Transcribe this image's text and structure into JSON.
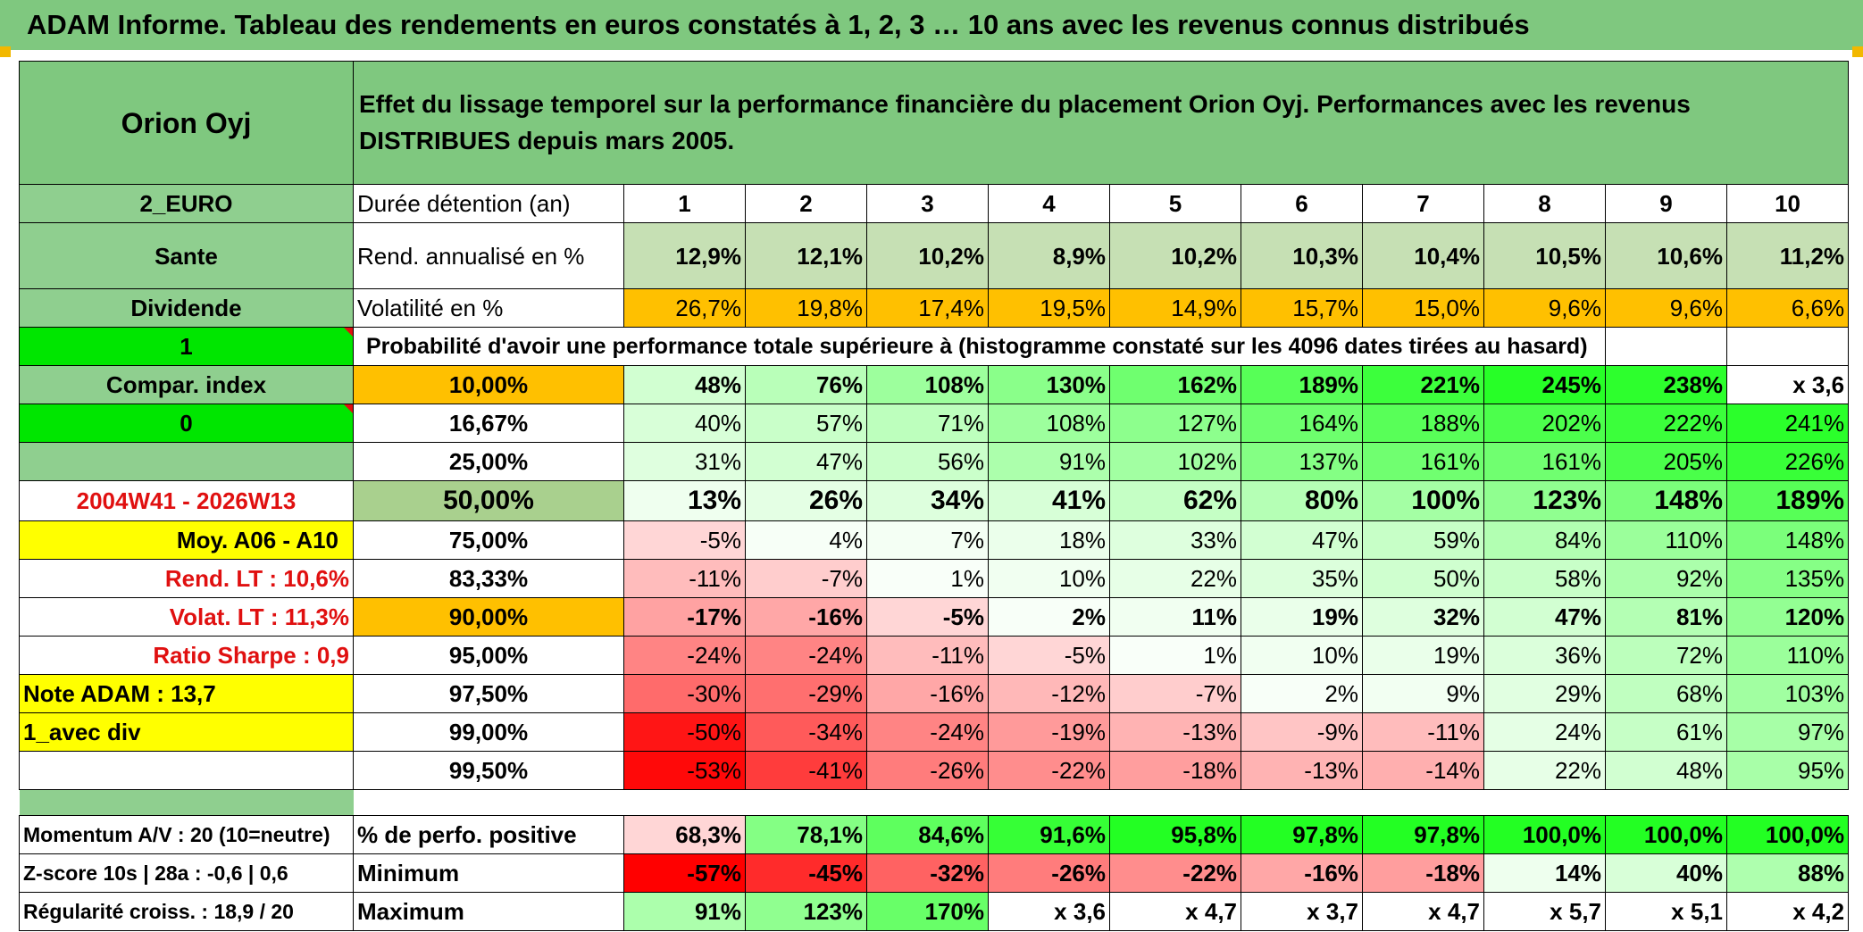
{
  "title": "ADAM Informe. Tableau des rendements en euros constatés à 1, 2, 3 … 10 ans avec les revenus connus distribués",
  "entity_name": "Orion Oyj",
  "description": "Effet du lissage temporel sur la performance financière du placement Orion Oyj. Performances avec les revenus DISTRIBUES depuis mars 2005.",
  "left_labels": {
    "currency": "2_EURO",
    "sector": "Sante",
    "dividend": "Dividende",
    "flag_1": "1",
    "compar_index": "Compar. index",
    "flag_0": "0",
    "blank": "",
    "period": "2004W41 - 2026W13",
    "avg": "Moy. A06 - A10",
    "rend_lt": "Rend. LT :    10,6%",
    "volat_lt": "Volat. LT :    11,3%",
    "sharpe": "Ratio Sharpe :    0,9",
    "note": "Note ADAM : 13,7",
    "variant": "1_avec div",
    "momentum": "Momentum A/V : 20 (10=neutre)",
    "zscore": "Z-score 10s | 28a : -0,6 | 0,6",
    "regularite": "Régularité croiss. : 18,9 / 20"
  },
  "row_labels": {
    "duration": "Durée détention (an)",
    "rend": "Rend. annualisé en %",
    "vol": "Volatilité en %",
    "prob_header": "Probabilité d'avoir une performance totale supérieure à (histogramme constaté sur les 4096 dates tirées au hasard)",
    "positive": "% de perfo. positive",
    "minimum": "Minimum",
    "maximum": "Maximum"
  },
  "years": [
    "1",
    "2",
    "3",
    "4",
    "5",
    "6",
    "7",
    "8",
    "9",
    "10"
  ],
  "rend": [
    "12,9%",
    "12,1%",
    "10,2%",
    "8,9%",
    "10,2%",
    "10,3%",
    "10,4%",
    "10,5%",
    "10,6%",
    "11,2%"
  ],
  "vol": [
    "26,7%",
    "19,8%",
    "17,4%",
    "19,5%",
    "14,9%",
    "15,7%",
    "15,0%",
    "9,6%",
    "9,6%",
    "6,6%"
  ],
  "prob_rows": [
    {
      "p": "10,00%",
      "values": [
        "48%",
        "76%",
        "108%",
        "130%",
        "162%",
        "189%",
        "221%",
        "245%",
        "238%",
        "x 3,6"
      ]
    },
    {
      "p": "16,67%",
      "values": [
        "40%",
        "57%",
        "71%",
        "108%",
        "127%",
        "164%",
        "188%",
        "202%",
        "222%",
        "241%"
      ]
    },
    {
      "p": "25,00%",
      "values": [
        "31%",
        "47%",
        "56%",
        "91%",
        "102%",
        "137%",
        "161%",
        "161%",
        "205%",
        "226%"
      ]
    },
    {
      "p": "50,00%",
      "values": [
        "13%",
        "26%",
        "34%",
        "41%",
        "62%",
        "80%",
        "100%",
        "123%",
        "148%",
        "189%"
      ]
    },
    {
      "p": "75,00%",
      "values": [
        "-5%",
        "4%",
        "7%",
        "18%",
        "33%",
        "47%",
        "59%",
        "84%",
        "110%",
        "148%"
      ]
    },
    {
      "p": "83,33%",
      "values": [
        "-11%",
        "-7%",
        "1%",
        "10%",
        "22%",
        "35%",
        "50%",
        "58%",
        "92%",
        "135%"
      ]
    },
    {
      "p": "90,00%",
      "values": [
        "-17%",
        "-16%",
        "-5%",
        "2%",
        "11%",
        "19%",
        "32%",
        "47%",
        "81%",
        "120%"
      ]
    },
    {
      "p": "95,00%",
      "values": [
        "-24%",
        "-24%",
        "-11%",
        "-5%",
        "1%",
        "10%",
        "19%",
        "36%",
        "72%",
        "110%"
      ]
    },
    {
      "p": "97,50%",
      "values": [
        "-30%",
        "-29%",
        "-16%",
        "-12%",
        "-7%",
        "2%",
        "9%",
        "29%",
        "68%",
        "103%"
      ]
    },
    {
      "p": "99,00%",
      "values": [
        "-50%",
        "-34%",
        "-24%",
        "-19%",
        "-13%",
        "-9%",
        "-11%",
        "24%",
        "61%",
        "97%"
      ]
    },
    {
      "p": "99,50%",
      "values": [
        "-53%",
        "-41%",
        "-26%",
        "-22%",
        "-18%",
        "-13%",
        "-14%",
        "22%",
        "48%",
        "95%"
      ]
    }
  ],
  "positive": [
    "68,3%",
    "78,1%",
    "84,6%",
    "91,6%",
    "95,8%",
    "97,8%",
    "97,8%",
    "100,0%",
    "100,0%",
    "100,0%"
  ],
  "minimum": [
    "-57%",
    "-45%",
    "-32%",
    "-26%",
    "-22%",
    "-16%",
    "-18%",
    "14%",
    "40%",
    "88%"
  ],
  "maximum": [
    "91%",
    "123%",
    "170%",
    "x 3,6",
    "x 4,7",
    "x 3,7",
    "x 4,7",
    "x 5,7",
    "x 5,1",
    "x 4,2"
  ],
  "colors": {
    "header_green": "#7fc87f",
    "pale_green": "#c6e0b4",
    "lime": "#00e600",
    "yellow": "#ffff00",
    "orange": "#ffc000",
    "label_red": "#e01010"
  }
}
